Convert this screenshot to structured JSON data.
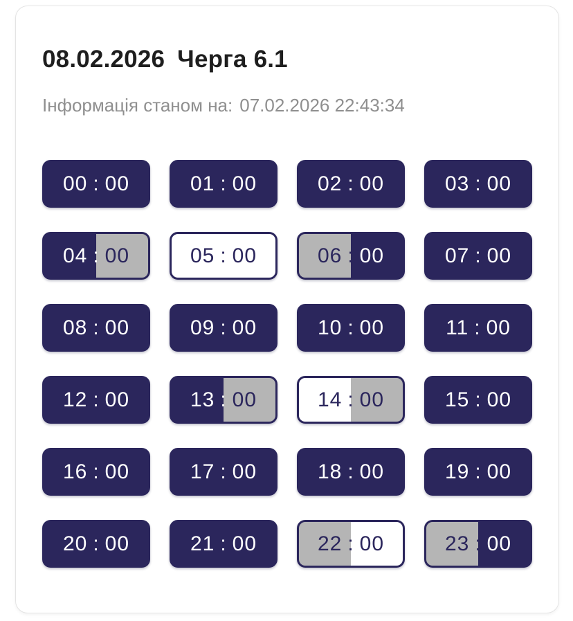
{
  "card": {
    "title_date": "08.02.2026",
    "title_queue": "Черга 6.1",
    "updated_label": "Інформація станом на:",
    "updated_value": "07.02.2026 22:43:34"
  },
  "time_separator": ":",
  "colors": {
    "navy": "#2b265c",
    "gray": "#b5b5b5",
    "white": "#ffffff"
  },
  "tiles": [
    {
      "hour": "00",
      "minute": "00",
      "left": "dark",
      "right": "dark"
    },
    {
      "hour": "01",
      "minute": "00",
      "left": "dark",
      "right": "dark"
    },
    {
      "hour": "02",
      "minute": "00",
      "left": "dark",
      "right": "dark"
    },
    {
      "hour": "03",
      "minute": "00",
      "left": "dark",
      "right": "dark"
    },
    {
      "hour": "04",
      "minute": "00",
      "left": "dark",
      "right": "gray"
    },
    {
      "hour": "05",
      "minute": "00",
      "left": "light",
      "right": "light"
    },
    {
      "hour": "06",
      "minute": "00",
      "left": "gray",
      "right": "dark"
    },
    {
      "hour": "07",
      "minute": "00",
      "left": "dark",
      "right": "dark"
    },
    {
      "hour": "08",
      "minute": "00",
      "left": "dark",
      "right": "dark"
    },
    {
      "hour": "09",
      "minute": "00",
      "left": "dark",
      "right": "dark"
    },
    {
      "hour": "10",
      "minute": "00",
      "left": "dark",
      "right": "dark"
    },
    {
      "hour": "11",
      "minute": "00",
      "left": "dark",
      "right": "dark"
    },
    {
      "hour": "12",
      "minute": "00",
      "left": "dark",
      "right": "dark"
    },
    {
      "hour": "13",
      "minute": "00",
      "left": "dark",
      "right": "gray"
    },
    {
      "hour": "14",
      "minute": "00",
      "left": "light",
      "right": "gray"
    },
    {
      "hour": "15",
      "minute": "00",
      "left": "dark",
      "right": "dark"
    },
    {
      "hour": "16",
      "minute": "00",
      "left": "dark",
      "right": "dark"
    },
    {
      "hour": "17",
      "minute": "00",
      "left": "dark",
      "right": "dark"
    },
    {
      "hour": "18",
      "minute": "00",
      "left": "dark",
      "right": "dark"
    },
    {
      "hour": "19",
      "minute": "00",
      "left": "dark",
      "right": "dark"
    },
    {
      "hour": "20",
      "minute": "00",
      "left": "dark",
      "right": "dark"
    },
    {
      "hour": "21",
      "minute": "00",
      "left": "dark",
      "right": "dark"
    },
    {
      "hour": "22",
      "minute": "00",
      "left": "gray",
      "right": "light"
    },
    {
      "hour": "23",
      "minute": "00",
      "left": "gray",
      "right": "dark"
    }
  ]
}
